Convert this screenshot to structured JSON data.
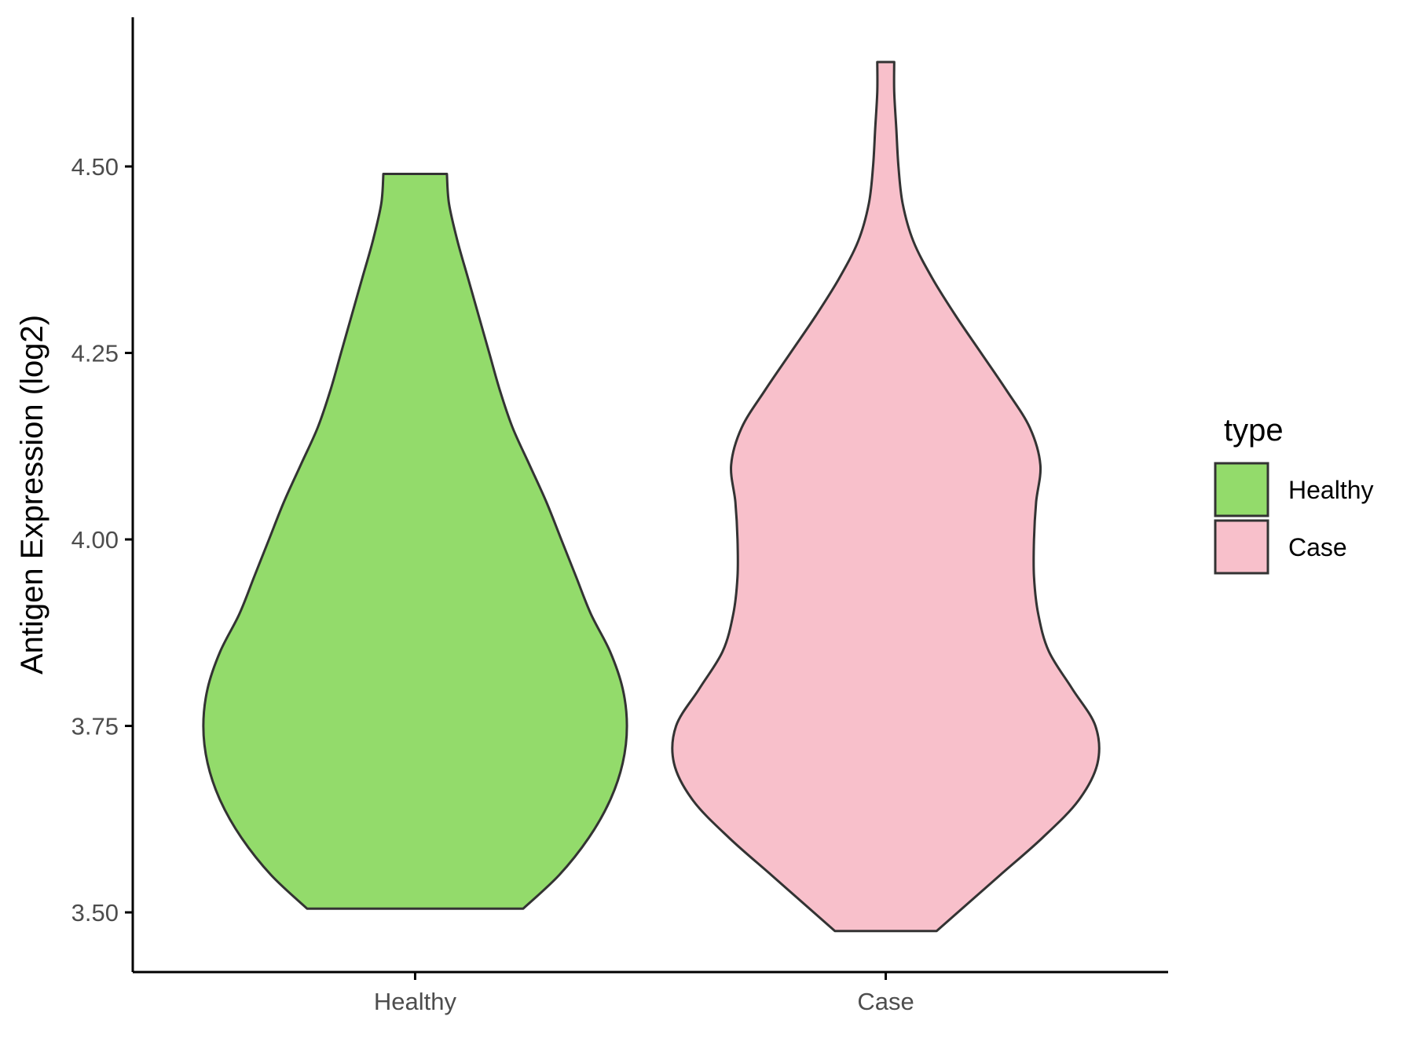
{
  "chart_data": {
    "type": "violin",
    "title": "",
    "xlabel": "",
    "ylabel": "Antigen Expression (log2)",
    "ylim": [
      3.42,
      4.7
    ],
    "yticks": [
      3.5,
      3.75,
      4.0,
      4.25,
      4.5
    ],
    "ytick_labels": [
      "3.50",
      "3.75",
      "4.00",
      "4.25",
      "4.50"
    ],
    "categories": [
      "Healthy",
      "Case"
    ],
    "grid": false,
    "legend": {
      "title": "type",
      "placement": "right",
      "entries": [
        "Healthy",
        "Case"
      ]
    },
    "series": [
      {
        "name": "Healthy",
        "color": "#93DB6B",
        "min": 3.505,
        "max": 4.49,
        "density_profile": [
          {
            "y": 3.505,
            "w": 0.51
          },
          {
            "y": 3.55,
            "w": 0.68
          },
          {
            "y": 3.6,
            "w": 0.82
          },
          {
            "y": 3.65,
            "w": 0.92
          },
          {
            "y": 3.7,
            "w": 0.98
          },
          {
            "y": 3.75,
            "w": 1.0
          },
          {
            "y": 3.8,
            "w": 0.98
          },
          {
            "y": 3.85,
            "w": 0.92
          },
          {
            "y": 3.9,
            "w": 0.83
          },
          {
            "y": 3.95,
            "w": 0.76
          },
          {
            "y": 4.0,
            "w": 0.69
          },
          {
            "y": 4.05,
            "w": 0.62
          },
          {
            "y": 4.1,
            "w": 0.54
          },
          {
            "y": 4.15,
            "w": 0.46
          },
          {
            "y": 4.2,
            "w": 0.4
          },
          {
            "y": 4.25,
            "w": 0.35
          },
          {
            "y": 4.3,
            "w": 0.3
          },
          {
            "y": 4.35,
            "w": 0.25
          },
          {
            "y": 4.4,
            "w": 0.2
          },
          {
            "y": 4.45,
            "w": 0.16
          },
          {
            "y": 4.49,
            "w": 0.15
          }
        ]
      },
      {
        "name": "Case",
        "color": "#F8C0CB",
        "min": 3.475,
        "max": 4.64,
        "density_profile": [
          {
            "y": 3.475,
            "w": 0.24
          },
          {
            "y": 3.5,
            "w": 0.34
          },
          {
            "y": 3.55,
            "w": 0.54
          },
          {
            "y": 3.6,
            "w": 0.74
          },
          {
            "y": 3.65,
            "w": 0.91
          },
          {
            "y": 3.7,
            "w": 1.0
          },
          {
            "y": 3.75,
            "w": 0.99
          },
          {
            "y": 3.8,
            "w": 0.88
          },
          {
            "y": 3.85,
            "w": 0.77
          },
          {
            "y": 3.9,
            "w": 0.72
          },
          {
            "y": 3.95,
            "w": 0.7
          },
          {
            "y": 4.0,
            "w": 0.7
          },
          {
            "y": 4.05,
            "w": 0.71
          },
          {
            "y": 4.1,
            "w": 0.73
          },
          {
            "y": 4.15,
            "w": 0.68
          },
          {
            "y": 4.2,
            "w": 0.57
          },
          {
            "y": 4.25,
            "w": 0.45
          },
          {
            "y": 4.3,
            "w": 0.33
          },
          {
            "y": 4.35,
            "w": 0.22
          },
          {
            "y": 4.4,
            "w": 0.13
          },
          {
            "y": 4.45,
            "w": 0.08
          },
          {
            "y": 4.5,
            "w": 0.06
          },
          {
            "y": 4.55,
            "w": 0.05
          },
          {
            "y": 4.6,
            "w": 0.04
          },
          {
            "y": 4.64,
            "w": 0.04
          }
        ]
      }
    ]
  }
}
